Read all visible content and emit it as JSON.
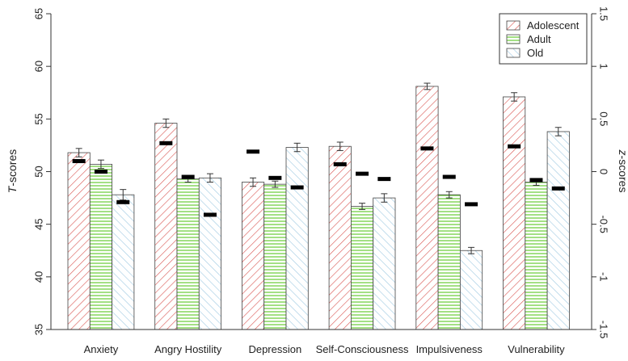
{
  "chart_data": {
    "type": "bar",
    "categories": [
      "Anxiety",
      "Angry Hostility",
      "Depression",
      "Self-Consciousness",
      "Impulsiveness",
      "Vulnerability"
    ],
    "series": [
      {
        "name": "Adolescent",
        "color": "#d9534f",
        "fill": "diagonal-hatch",
        "values": [
          51.8,
          54.6,
          49.0,
          52.4,
          58.1,
          57.1
        ],
        "errors": [
          0.4,
          0.4,
          0.4,
          0.4,
          0.3,
          0.4
        ]
      },
      {
        "name": "Adult",
        "color": "#66cc33",
        "fill": "horizontal-lines",
        "values": [
          50.7,
          49.3,
          48.8,
          46.7,
          47.8,
          49.0
        ],
        "errors": [
          0.4,
          0.3,
          0.3,
          0.3,
          0.3,
          0.3
        ]
      },
      {
        "name": "Old",
        "color": "#9ec9e2",
        "fill": "diagonal-hatch",
        "values": [
          47.8,
          49.4,
          52.3,
          47.5,
          42.5,
          53.8
        ],
        "errors": [
          0.5,
          0.4,
          0.4,
          0.4,
          0.3,
          0.4
        ]
      }
    ],
    "z_markers": {
      "Adolescent": [
        0.1,
        0.27,
        0.19,
        0.07,
        0.22,
        0.24
      ],
      "Adult": [
        0.0,
        -0.05,
        -0.06,
        -0.02,
        -0.05,
        -0.08
      ],
      "Old": [
        -0.29,
        -0.41,
        -0.15,
        -0.07,
        -0.31,
        -0.16
      ]
    },
    "ylabel_left_italic": "T",
    "ylabel_left_rest": "-scores",
    "ylabel_right_italic": "z",
    "ylabel_right_rest": "-scores",
    "ylim_left": [
      35,
      65
    ],
    "ylim_right": [
      -1.5,
      1.5
    ],
    "left_ticks": [
      "35",
      "40",
      "45",
      "50",
      "55",
      "60",
      "65"
    ],
    "right_ticks": [
      "-1.5",
      "-1",
      "-0.5",
      "0",
      "0.5",
      "1",
      "1.5"
    ],
    "legend_position": "top-right",
    "grid": false
  }
}
